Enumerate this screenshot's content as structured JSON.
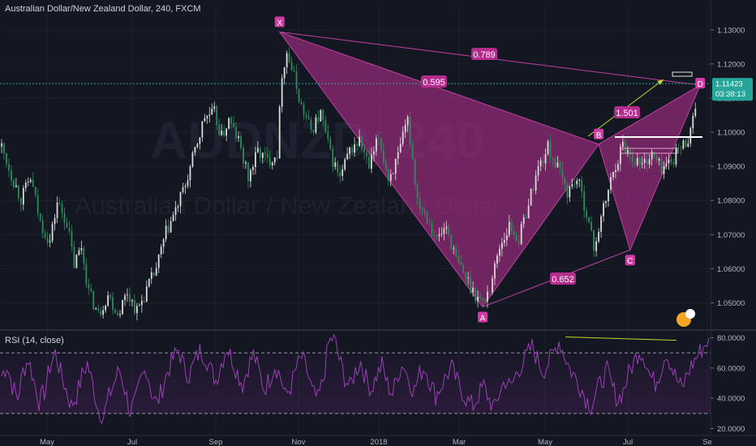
{
  "header": {
    "symbol_title": "Australian Dollar/New Zealand Dollar, 240, FXCM"
  },
  "watermark": {
    "big": "AUDNZD, 240",
    "sub": "Australian Dollar / New Zealand Dollar"
  },
  "price_label": {
    "value": "1.11423",
    "timer": "03:38:13"
  },
  "rsi_title": "RSI (14, close)",
  "colors": {
    "background": "#131722",
    "pattern": "#9c2c7e",
    "rsi": "#9a3fb5",
    "guide": "#c6d62a",
    "price_line": "#26a69a"
  },
  "chart_data": [
    {
      "type": "candlestick",
      "title": "Australian Dollar/New Zealand Dollar, 240, FXCM",
      "y_ticks": [
        "1.13000",
        "1.12000",
        "1.11000",
        "1.10000",
        "1.09000",
        "1.08000",
        "1.07000",
        "1.06000",
        "1.05000"
      ],
      "x_ticks": [
        "May",
        "Jul",
        "Sep",
        "Nov",
        "2018",
        "Mar",
        "May",
        "Jul",
        "Se"
      ],
      "ylim": [
        1.0425,
        1.134
      ],
      "last_price": 1.11423,
      "price_path": [
        [
          0,
          1.0958
        ],
        [
          4,
          1.0875
        ],
        [
          8,
          1.0805
        ],
        [
          12,
          1.0865
        ],
        [
          16,
          1.0735
        ],
        [
          20,
          1.068
        ],
        [
          23,
          1.0795
        ],
        [
          27,
          1.0735
        ],
        [
          30,
          1.0612
        ],
        [
          33,
          1.0665
        ],
        [
          36,
          1.0532
        ],
        [
          40,
          1.0465
        ],
        [
          44,
          1.0525
        ],
        [
          48,
          1.0468
        ],
        [
          52,
          1.0532
        ],
        [
          56,
          1.0475
        ],
        [
          60,
          1.0538
        ],
        [
          64,
          1.06
        ],
        [
          68,
          1.0705
        ],
        [
          72,
          1.077
        ],
        [
          76,
          1.0845
        ],
        [
          80,
          1.0945
        ],
        [
          84,
          1.1045
        ],
        [
          88,
          1.1055
        ],
        [
          91,
          1.0985
        ],
        [
          94,
          1.1035
        ],
        [
          98,
          1.0975
        ],
        [
          102,
          1.0865
        ],
        [
          106,
          1.0945
        ],
        [
          110,
          1.0915
        ],
        [
          114,
          1.094
        ],
        [
          116,
          1.1175
        ],
        [
          118,
          1.1235
        ],
        [
          121,
          1.116
        ],
        [
          124,
          1.1075
        ],
        [
          128,
          1.1005
        ],
        [
          132,
          1.1055
        ],
        [
          136,
          1.0935
        ],
        [
          140,
          1.0865
        ],
        [
          144,
          1.0945
        ],
        [
          148,
          1.0975
        ],
        [
          152,
          1.0895
        ],
        [
          156,
          1.0985
        ],
        [
          160,
          1.0865
        ],
        [
          164,
          1.0925
        ],
        [
          168,
          1.1035
        ],
        [
          172,
          1.0805
        ],
        [
          176,
          1.0755
        ],
        [
          180,
          1.0685
        ],
        [
          184,
          1.0725
        ],
        [
          188,
          1.0625
        ],
        [
          192,
          1.0575
        ],
        [
          196,
          1.0525
        ],
        [
          199,
          1.05
        ],
        [
          202,
          1.0545
        ],
        [
          206,
          1.0665
        ],
        [
          210,
          1.0725
        ],
        [
          214,
          1.0685
        ],
        [
          218,
          1.0795
        ],
        [
          222,
          1.0895
        ],
        [
          226,
          1.0955
        ],
        [
          230,
          1.0895
        ],
        [
          234,
          1.0825
        ],
        [
          238,
          1.0865
        ],
        [
          242,
          1.0765
        ],
        [
          245,
          1.066
        ],
        [
          249,
          1.0775
        ],
        [
          253,
          1.0885
        ],
        [
          257,
          1.0965
        ],
        [
          261,
          1.0925
        ],
        [
          265,
          1.0905
        ],
        [
          269,
          1.0935
        ],
        [
          273,
          1.0895
        ],
        [
          277,
          1.0915
        ],
        [
          280,
          1.095
        ],
        [
          283,
          1.097
        ],
        [
          285,
          1.1005
        ],
        [
          287,
          1.1085
        ]
      ],
      "harmonic_pattern": {
        "points": [
          {
            "name": "X",
            "i": 115,
            "price": 1.1294
          },
          {
            "name": "A",
            "i": 199,
            "price": 1.0488
          },
          {
            "name": "B",
            "i": 247,
            "price": 1.0965
          },
          {
            "name": "C",
            "i": 260,
            "price": 1.0655
          },
          {
            "name": "D",
            "i": 289,
            "price": 1.1138
          }
        ],
        "ratios": [
          {
            "text": "0.789",
            "between": "X-D"
          },
          {
            "text": "0.595",
            "between": "X-B"
          },
          {
            "text": "0.652",
            "between": "A-C"
          },
          {
            "text": "1.501",
            "between": "B-D"
          }
        ]
      }
    },
    {
      "type": "line",
      "title": "RSI (14, close)",
      "y_ticks": [
        "80.0000",
        "60.0000",
        "40.0000",
        "20.0000"
      ],
      "ylim": [
        16,
        84
      ],
      "bands": [
        70,
        30
      ],
      "values": [
        55,
        62,
        48,
        40,
        58,
        66,
        52,
        38,
        44,
        61,
        70,
        57,
        46,
        35,
        42,
        55,
        63,
        49,
        33,
        28,
        41,
        50,
        59,
        46,
        31,
        38,
        52,
        60,
        44,
        36,
        47,
        58,
        66,
        72,
        61,
        55,
        64,
        71,
        68,
        59,
        52,
        63,
        74,
        66,
        57,
        49,
        61,
        69,
        58,
        46,
        53,
        62,
        55,
        41,
        48,
        60,
        67,
        58,
        44,
        39,
        52,
        76,
        81,
        66,
        54,
        47,
        58,
        64,
        53,
        46,
        55,
        62,
        49,
        43,
        57,
        63,
        52,
        45,
        56,
        61,
        50,
        42,
        48,
        55,
        60,
        51,
        44,
        38,
        35,
        42,
        48,
        39,
        33,
        45,
        52,
        47,
        56,
        62,
        68,
        74,
        66,
        58,
        63,
        70,
        78,
        69,
        60,
        54,
        48,
        40,
        35,
        44,
        52,
        58,
        47,
        39,
        45,
        56,
        64,
        72,
        67,
        55,
        50,
        59,
        71,
        61,
        52,
        46,
        57,
        63,
        69,
        74,
        80
      ],
      "divergence": {
        "from": 0.843,
        "to": 1.0
      }
    }
  ]
}
